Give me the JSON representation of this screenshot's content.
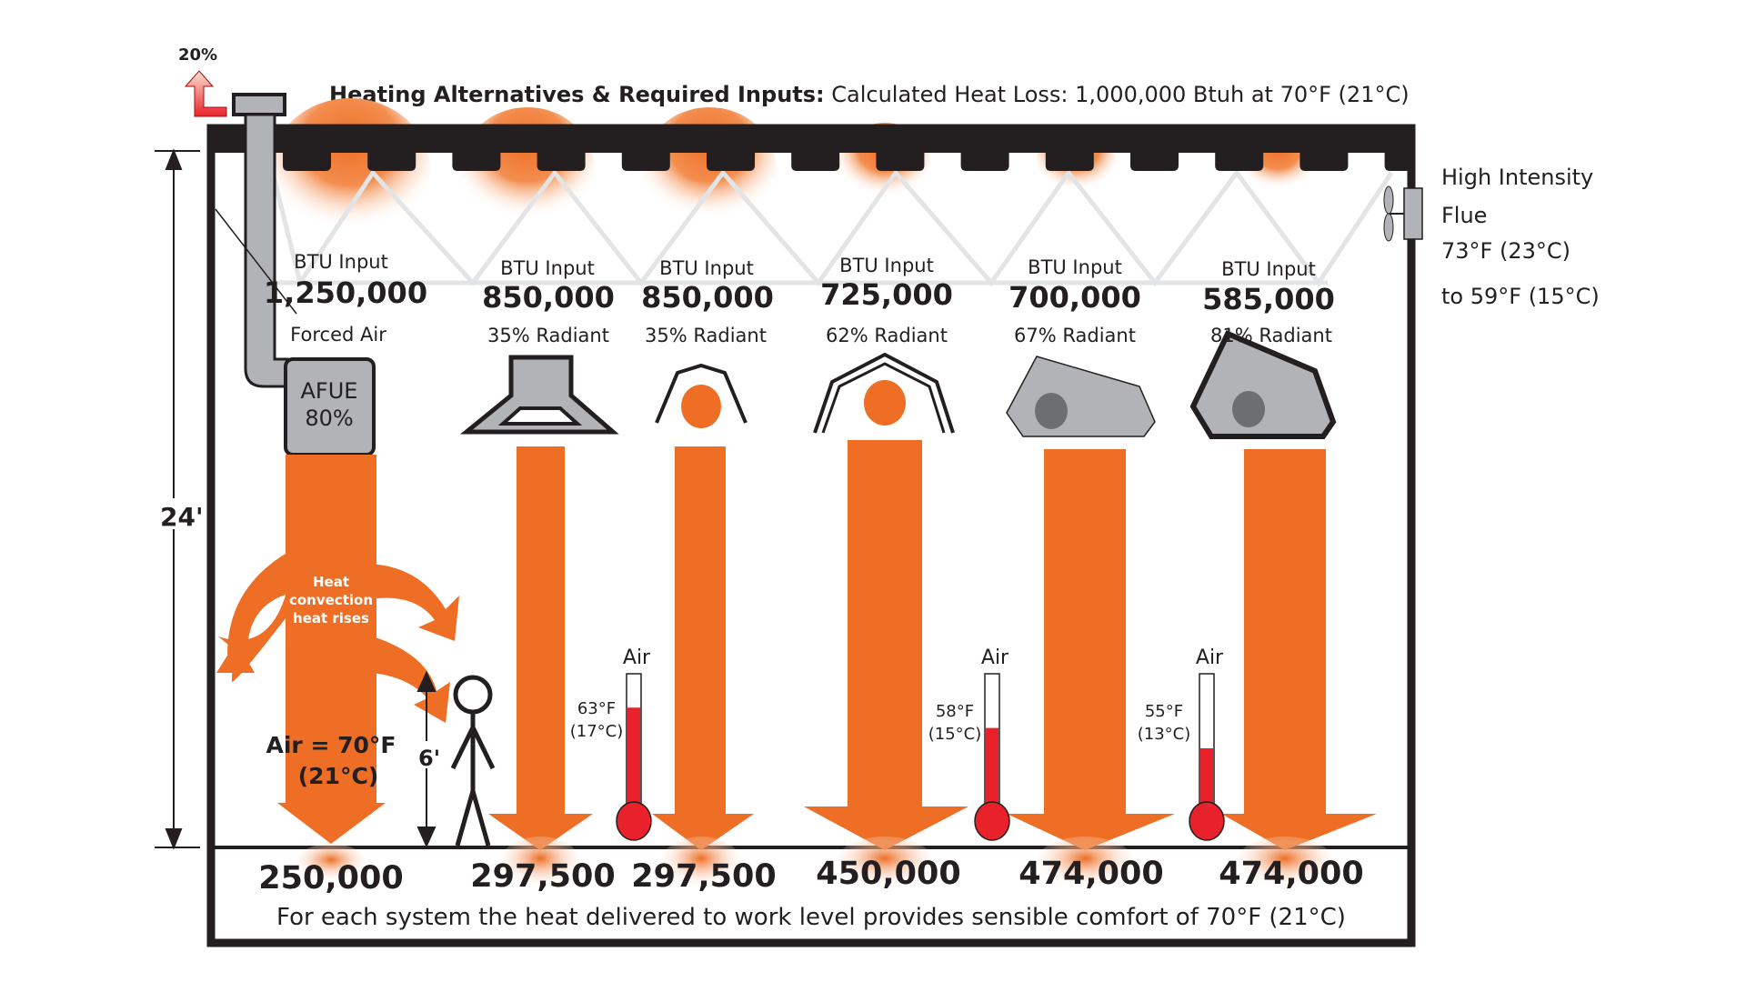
{
  "title": {
    "bold": "Heating Alternatives & Required Inputs:",
    "rest": " Calculated Heat Loss: 1,000,000 Btuh at 70°F (21°C)"
  },
  "flue_loss": "20%",
  "ceiling_height": "24'",
  "person_height": "6'",
  "high_intensity": {
    "line1": "High Intensity",
    "line2": "Flue",
    "line3": "73°F (23°C)",
    "line4": "to 59°F (15°C)"
  },
  "systems": [
    {
      "btu_label": "BTU Input",
      "btu": "1,250,000",
      "type": "Forced Air",
      "delivered": "250,000"
    },
    {
      "btu_label": "BTU Input",
      "btu": "850,000",
      "type": "35% Radiant",
      "delivered": "297,500"
    },
    {
      "btu_label": "BTU Input",
      "btu": "850,000",
      "type": "35% Radiant",
      "delivered": "297,500"
    },
    {
      "btu_label": "BTU Input",
      "btu": "725,000",
      "type": "62% Radiant",
      "delivered": "450,000"
    },
    {
      "btu_label": "BTU Input",
      "btu": "700,000",
      "type": "67% Radiant",
      "delivered": "474,000"
    },
    {
      "btu_label": "BTU Input",
      "btu": "585,000",
      "type": "81% Radiant",
      "delivered": "474,000"
    }
  ],
  "furnace": {
    "line1": "AFUE",
    "line2": "80%"
  },
  "convection": {
    "line1": "Heat",
    "line2": "convection",
    "line3": "heat rises"
  },
  "forced_air_temp": {
    "line1": "Air = 70°F",
    "line2": "(21°C)"
  },
  "thermometers": [
    {
      "label": "Air",
      "temp_f": "63°F",
      "temp_c": "(17°C)",
      "level": 0.75
    },
    {
      "label": "Air",
      "temp_f": "58°F",
      "temp_c": "(15°C)",
      "level": 0.6
    },
    {
      "label": "Air",
      "temp_f": "55°F",
      "temp_c": "(13°C)",
      "level": 0.45
    }
  ],
  "footer": "For each system the heat delivered to work level provides sensible comfort of 70°F (21°C)",
  "colors": {
    "orange": "#EE6E25",
    "red": "#E8212B",
    "gray": "#B1B3B6",
    "dark": "#231F20"
  }
}
